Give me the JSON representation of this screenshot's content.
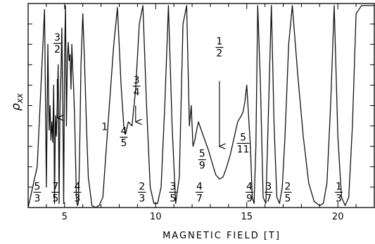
{
  "chart_data": {
    "type": "line",
    "title": "",
    "xlabel": "MAGNETIC FIELD [T]",
    "ylabel_main": "ρ",
    "ylabel_sub": "xx",
    "xlim": [
      3.0,
      22.0
    ],
    "ylim": [
      0.0,
      1.0
    ],
    "x_ticks": [
      5,
      10,
      15,
      20
    ],
    "x_tick_labels": [
      "5",
      "10",
      "15",
      "20"
    ],
    "y_unit": "arbitrary",
    "grid": false,
    "series": [
      {
        "color": "#111111",
        "x": [
          3.0,
          3.5,
          3.9,
          4.0,
          4.08,
          4.15,
          4.2,
          4.25,
          4.3,
          4.35,
          4.4,
          4.45,
          4.5,
          4.55,
          4.6,
          4.65,
          4.7,
          4.75,
          4.8,
          4.85,
          4.9,
          4.95,
          5.0,
          5.05,
          5.1,
          5.15,
          5.2,
          5.25,
          5.3,
          5.35,
          5.4,
          5.45,
          5.5,
          5.55,
          5.6,
          5.65,
          5.7,
          5.75,
          5.8,
          5.85,
          5.9,
          6.0,
          6.1,
          6.2,
          6.3,
          6.5,
          6.7,
          6.9,
          7.1,
          7.3,
          7.5,
          7.7,
          7.9,
          8.1,
          8.25,
          8.35,
          8.5,
          8.7,
          8.9,
          9.1,
          9.3,
          9.5,
          9.7,
          9.9,
          10.1,
          10.3,
          10.5,
          10.7,
          10.9,
          11.1,
          11.3,
          11.5,
          11.7,
          11.85,
          11.95,
          12.05,
          12.15,
          12.25,
          12.35,
          12.5,
          12.7,
          12.9,
          13.1,
          13.3,
          13.5,
          13.7,
          13.9,
          14.1,
          14.3,
          14.5,
          14.7,
          14.8,
          14.9,
          15.0,
          15.1,
          15.2,
          15.3,
          15.4,
          15.5,
          15.6,
          15.75,
          15.9,
          16.05,
          16.2,
          16.35,
          16.5,
          16.65,
          16.8,
          16.95,
          17.1,
          17.3,
          17.5,
          17.8,
          18.1,
          18.4,
          18.7,
          19.0,
          19.2,
          19.4,
          19.6,
          19.8,
          20.0,
          20.2,
          20.4,
          20.6,
          20.8,
          21.0,
          21.3,
          21.6,
          22.0
        ],
        "y": [
          0.0,
          0.2,
          0.97,
          0.1,
          0.8,
          0.38,
          0.5,
          0.33,
          0.42,
          0.32,
          0.6,
          0.02,
          0.45,
          0.35,
          0.5,
          0.7,
          0.02,
          0.5,
          0.65,
          0.88,
          0.5,
          0.02,
          0.75,
          0.99,
          0.4,
          0.72,
          0.81,
          0.72,
          0.75,
          0.58,
          0.8,
          0.68,
          0.58,
          0.45,
          0.25,
          0.05,
          0.01,
          0.02,
          0.15,
          0.4,
          0.7,
          0.95,
          0.7,
          0.4,
          0.15,
          0.01,
          0.0,
          0.01,
          0.05,
          0.3,
          0.55,
          0.8,
          0.98,
          0.6,
          0.4,
          0.36,
          0.42,
          0.4,
          0.58,
          0.9,
          0.99,
          0.5,
          0.1,
          0.02,
          0.02,
          0.1,
          0.5,
          0.99,
          0.4,
          0.02,
          0.15,
          0.9,
          0.99,
          0.4,
          0.5,
          0.3,
          0.33,
          0.38,
          0.42,
          0.38,
          0.33,
          0.28,
          0.22,
          0.16,
          0.14,
          0.15,
          0.2,
          0.26,
          0.34,
          0.42,
          0.45,
          0.47,
          0.52,
          0.6,
          0.45,
          0.3,
          0.05,
          0.02,
          0.3,
          0.99,
          0.6,
          0.05,
          0.02,
          0.5,
          0.99,
          0.4,
          0.05,
          0.02,
          0.1,
          0.35,
          0.8,
          0.99,
          0.65,
          0.35,
          0.12,
          0.03,
          0.01,
          0.02,
          0.12,
          0.5,
          0.99,
          0.35,
          0.05,
          0.01,
          0.05,
          0.4,
          0.95,
          0.99,
          0.99,
          0.99
        ]
      }
    ],
    "annotations": [
      {
        "num": "5",
        "den": "3",
        "x": 3.5,
        "y": 0.03
      },
      {
        "num": "7",
        "den": "5",
        "x": 4.5,
        "y": 0.03
      },
      {
        "num": "4",
        "den": "3",
        "x": 5.7,
        "y": 0.03
      },
      {
        "num": "2",
        "den": "3",
        "x": 9.25,
        "y": 0.03
      },
      {
        "num": "3",
        "den": "5",
        "x": 10.95,
        "y": 0.03
      },
      {
        "num": "4",
        "den": "7",
        "x": 12.4,
        "y": 0.03
      },
      {
        "num": "4",
        "den": "9",
        "x": 15.15,
        "y": 0.03
      },
      {
        "num": "3",
        "den": "7",
        "x": 16.2,
        "y": 0.03
      },
      {
        "num": "2",
        "den": "5",
        "x": 17.25,
        "y": 0.03
      },
      {
        "num": "1",
        "den": "3",
        "x": 20.05,
        "y": 0.03
      },
      {
        "num": "4",
        "den": "5",
        "x": 8.25,
        "y": 0.3
      },
      {
        "num": "3",
        "den": "4",
        "x": 8.95,
        "y": 0.55
      },
      {
        "num": "5",
        "den": "9",
        "x": 12.55,
        "y": 0.19
      },
      {
        "num": "5",
        "den": "11",
        "x": 14.8,
        "y": 0.27
      },
      {
        "num": "3",
        "den": "2",
        "x": 4.6,
        "y": 0.76
      },
      {
        "num": "1",
        "den": "2",
        "x": 13.5,
        "y": 0.74
      }
    ],
    "plain_labels": [
      {
        "text": "1",
        "x": 7.2,
        "y": 0.38
      }
    ],
    "arrows": [
      {
        "from": [
          4.6,
          0.63
        ],
        "to": [
          4.6,
          0.44
        ]
      },
      {
        "from": [
          8.9,
          0.5
        ],
        "to": [
          8.9,
          0.42
        ]
      },
      {
        "from": [
          13.5,
          0.62
        ],
        "to": [
          13.5,
          0.3
        ]
      }
    ]
  }
}
